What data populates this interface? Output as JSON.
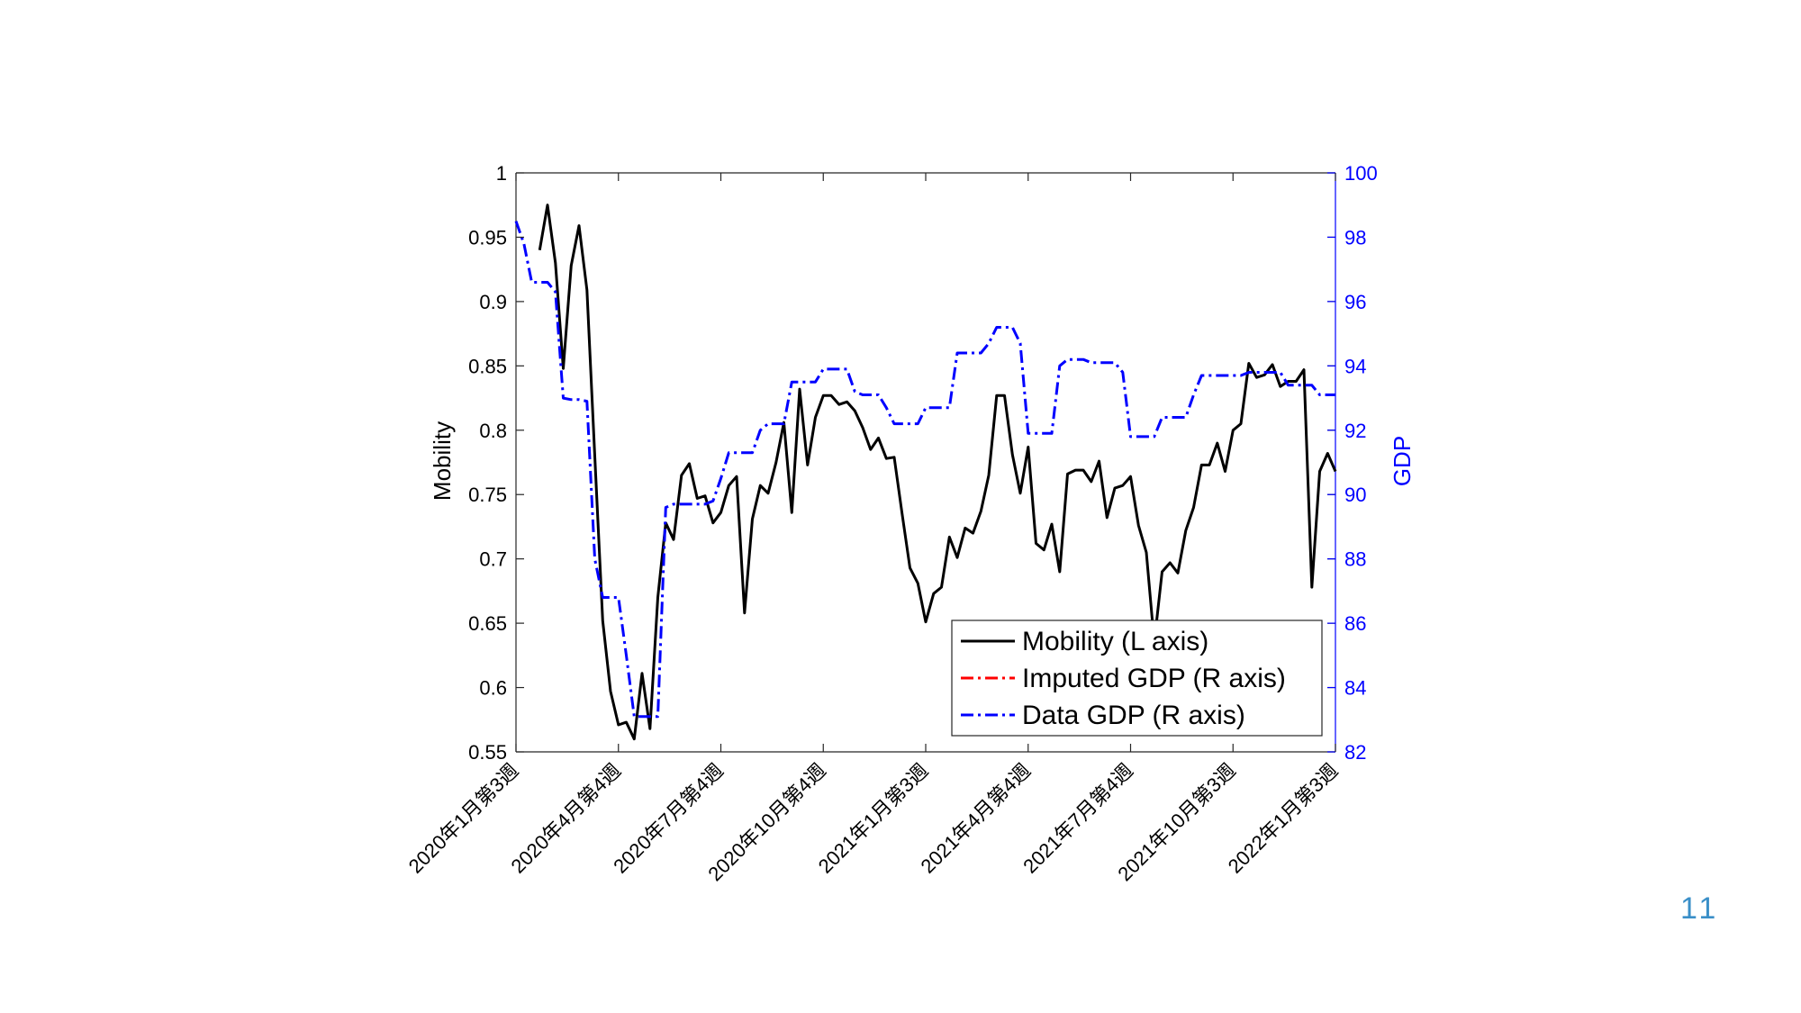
{
  "page_number": "11",
  "colors": {
    "mobility": "#000000",
    "imputed": "#ff0000",
    "data_gdp": "#0000ff",
    "right_axis": "#0000ff",
    "page_number": "#3a8fc8"
  },
  "chart_data": {
    "type": "line",
    "title": "",
    "xlabel": "",
    "ylabel": "Mobility",
    "ylabel_right": "GDP",
    "ylim": [
      0.55,
      1.0
    ],
    "ylim_right": [
      82,
      100
    ],
    "yticks": [
      "0.55",
      "0.6",
      "0.65",
      "0.7",
      "0.75",
      "0.8",
      "0.85",
      "0.9",
      "0.95",
      "1"
    ],
    "yticks_right": [
      "82",
      "84",
      "86",
      "88",
      "90",
      "92",
      "94",
      "96",
      "98",
      "100"
    ],
    "x_count": 105,
    "xtick_labels": [
      {
        "index": 0,
        "label": "2020年1月第3週"
      },
      {
        "index": 13,
        "label": "2020年4月第4週"
      },
      {
        "index": 26,
        "label": "2020年7月第4週"
      },
      {
        "index": 39,
        "label": "2020年10月第4週"
      },
      {
        "index": 52,
        "label": "2021年1月第3週"
      },
      {
        "index": 65,
        "label": "2021年4月第4週"
      },
      {
        "index": 78,
        "label": "2021年7月第4週"
      },
      {
        "index": 91,
        "label": "2021年10月第3週"
      },
      {
        "index": 104,
        "label": "2022年1月第3週"
      }
    ],
    "grid": false,
    "legend_position": "bottom-right",
    "series": [
      {
        "name": "Mobility (L axis)",
        "axis": "left",
        "style": "solid",
        "x": [
          3,
          4,
          5,
          6,
          7,
          8,
          9,
          10,
          11,
          12,
          13,
          14,
          15,
          16,
          17,
          18,
          19,
          20,
          21,
          22,
          23,
          24,
          25,
          26,
          27,
          28,
          29,
          30,
          31,
          32,
          33,
          34,
          35,
          36,
          37,
          38,
          39,
          40,
          41,
          42,
          43,
          44,
          45,
          46,
          47,
          48,
          49,
          50,
          51,
          52,
          53,
          54,
          55,
          56,
          57,
          58,
          59,
          60,
          61,
          62,
          63,
          64,
          65,
          66,
          67,
          68,
          69,
          70,
          71,
          72,
          73,
          74,
          75,
          76,
          77,
          78,
          79,
          80,
          81,
          82,
          83,
          84,
          85,
          86,
          87,
          88,
          89,
          90,
          91,
          92,
          93,
          94,
          95,
          96,
          97,
          98,
          99,
          100,
          101,
          102,
          103,
          104
        ],
        "y": [
          0.94,
          0.975,
          0.93,
          0.848,
          0.928,
          0.959,
          0.909,
          0.78,
          0.652,
          0.597,
          0.571,
          0.573,
          0.56,
          0.611,
          0.568,
          0.67,
          0.728,
          0.715,
          0.765,
          0.774,
          0.747,
          0.749,
          0.728,
          0.736,
          0.757,
          0.764,
          0.658,
          0.731,
          0.757,
          0.751,
          0.775,
          0.806,
          0.736,
          0.832,
          0.773,
          0.81,
          0.827,
          0.827,
          0.82,
          0.822,
          0.815,
          0.802,
          0.785,
          0.794,
          0.778,
          0.779,
          0.735,
          0.693,
          0.681,
          0.651,
          0.673,
          0.678,
          0.717,
          0.701,
          0.724,
          0.72,
          0.737,
          0.765,
          0.827,
          0.827,
          0.781,
          0.751,
          0.787,
          0.712,
          0.707,
          0.727,
          0.69,
          0.766,
          0.769,
          0.769,
          0.76,
          0.776,
          0.732,
          0.755,
          0.757,
          0.764,
          0.726,
          0.705,
          0.635,
          0.69,
          0.697,
          0.689,
          0.722,
          0.74,
          0.773,
          0.773,
          0.79,
          0.768,
          0.8,
          0.805,
          0.852,
          0.841,
          0.843,
          0.851,
          0.834,
          0.838,
          0.838,
          0.847,
          0.678,
          0.768,
          0.782,
          0.768
        ]
      },
      {
        "name": "Imputed GDP (R axis)",
        "axis": "right",
        "style": "dashdot",
        "x": [],
        "y": []
      },
      {
        "name": "Data GDP (R axis)",
        "axis": "right",
        "style": "dashdot",
        "x": [
          0,
          1,
          2,
          3,
          4,
          5,
          6,
          7,
          8,
          9,
          10,
          11,
          12,
          13,
          14,
          15,
          16,
          17,
          18,
          19,
          20,
          21,
          22,
          23,
          24,
          25,
          26,
          27,
          28,
          29,
          30,
          31,
          32,
          33,
          34,
          35,
          36,
          37,
          38,
          39,
          40,
          41,
          42,
          43,
          44,
          45,
          46,
          47,
          48,
          49,
          50,
          51,
          52,
          53,
          54,
          55,
          56,
          57,
          58,
          59,
          60,
          61,
          62,
          63,
          64,
          65,
          66,
          67,
          68,
          69,
          70,
          71,
          72,
          73,
          74,
          75,
          76,
          77,
          78,
          79,
          80,
          81,
          82,
          83,
          84,
          85,
          86,
          87,
          88,
          89,
          90,
          91,
          92,
          93,
          94,
          95,
          96,
          97,
          98,
          99,
          100,
          101,
          102,
          103,
          104
        ],
        "y": [
          98.5,
          97.8,
          96.6,
          96.6,
          96.6,
          96.3,
          93.0,
          92.95,
          92.95,
          92.9,
          88.0,
          86.8,
          86.8,
          86.8,
          85.0,
          83.1,
          83.1,
          83.1,
          83.1,
          89.6,
          89.7,
          89.7,
          89.7,
          89.7,
          89.7,
          89.8,
          90.5,
          91.3,
          91.3,
          91.3,
          91.3,
          92.0,
          92.2,
          92.2,
          92.2,
          93.5,
          93.5,
          93.5,
          93.5,
          93.9,
          93.9,
          93.9,
          93.9,
          93.2,
          93.1,
          93.1,
          93.1,
          92.7,
          92.2,
          92.2,
          92.2,
          92.2,
          92.7,
          92.7,
          92.7,
          92.7,
          94.4,
          94.4,
          94.4,
          94.4,
          94.7,
          95.2,
          95.2,
          95.2,
          94.7,
          91.9,
          91.9,
          91.9,
          91.9,
          94.0,
          94.2,
          94.2,
          94.2,
          94.1,
          94.1,
          94.1,
          94.1,
          93.8,
          91.8,
          91.8,
          91.8,
          91.8,
          92.4,
          92.4,
          92.4,
          92.4,
          93.1,
          93.7,
          93.7,
          93.7,
          93.7,
          93.7,
          93.7,
          93.8,
          93.8,
          93.8,
          93.8,
          93.8,
          93.4,
          93.4,
          93.4,
          93.4,
          93.1,
          93.1,
          93.1
        ]
      }
    ]
  }
}
